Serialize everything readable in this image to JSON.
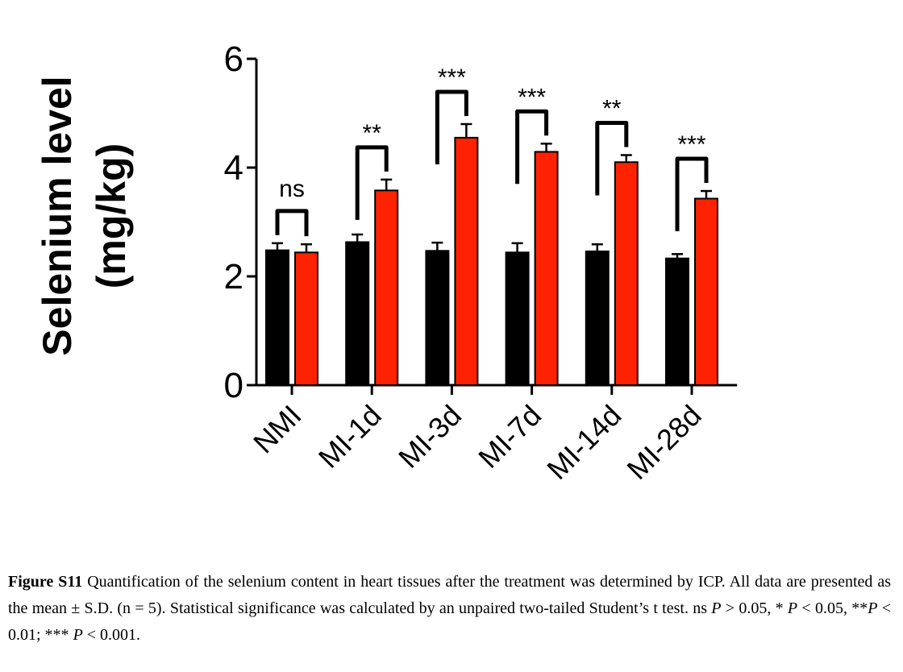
{
  "chart_data": {
    "type": "bar",
    "ylabel_line1": "Selenium level",
    "ylabel_line2": "(mg/kg)",
    "ylim": [
      0,
      6
    ],
    "yticks": [
      "0",
      "2",
      "4",
      "6"
    ],
    "categories": [
      "NMI",
      "MI-1d",
      "MI-3d",
      "MI-7d",
      "MI-14d",
      "MI-28d"
    ],
    "series": [
      {
        "values": [
          2.48,
          2.63,
          2.47,
          2.44,
          2.46,
          2.33
        ],
        "errors": [
          0.13,
          0.14,
          0.15,
          0.17,
          0.13,
          0.08
        ]
      },
      {
        "values": [
          2.44,
          3.58,
          4.55,
          4.29,
          4.1,
          3.43
        ],
        "errors": [
          0.15,
          0.2,
          0.25,
          0.15,
          0.13,
          0.14
        ]
      }
    ],
    "significance": [
      "ns",
      "**",
      "***",
      "***",
      "**",
      "***"
    ],
    "colors": {
      "series1": "#000000",
      "series2": "#ff2200"
    },
    "grid": false,
    "legend": "none"
  },
  "caption": {
    "label": "Figure S11",
    "text_1": " Quantification of the selenium content in heart tissues after the treatment was determined by ICP. All data are presented as the mean ± S.D. (n = 5). Statistical significance was calculated by an unpaired two-tailed Student’s t test. ns ",
    "p1": "P",
    "text_2": " > 0.05, * ",
    "p2": "P",
    "text_3": " < 0.05, **",
    "p3": "P",
    "text_4": " < 0.01; *** ",
    "p4": "P",
    "text_5": " < 0.001."
  }
}
